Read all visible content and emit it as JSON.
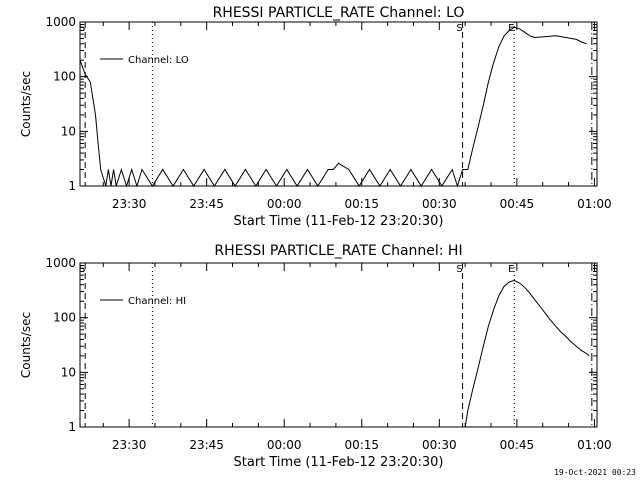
{
  "chart_data": [
    {
      "type": "line",
      "title": "RHESSI PARTICLE_RATE Channel: LO",
      "ylabel": "Counts/sec",
      "xlabel": "Start Time (11-Feb-12 23:20:30)",
      "yscale": "log",
      "ylim": [
        1,
        1000
      ],
      "y_ticks": [
        "1",
        "10",
        "100",
        "1000"
      ],
      "x_ticks": [
        "23:30",
        "23:45",
        "00:00",
        "00:15",
        "00:30",
        "00:45",
        "01:00"
      ],
      "x_range_minutes": [
        0,
        100
      ],
      "legend": {
        "position": "top-left",
        "entries": [
          "Channel: LO"
        ]
      },
      "series": [
        {
          "name": "Channel: LO",
          "x_minutes": [
            0,
            1,
            2,
            3,
            3.5,
            4,
            5,
            5.5,
            6,
            6.5,
            7,
            8,
            9,
            10,
            11,
            12,
            14,
            16,
            18,
            20,
            22,
            24,
            26,
            28,
            30,
            32,
            34,
            36,
            38,
            40,
            42,
            44,
            46,
            48,
            49,
            50,
            52,
            54,
            56,
            58,
            60,
            62,
            64,
            66,
            68,
            70,
            72,
            73,
            74,
            75,
            76,
            77,
            78,
            79,
            80,
            81,
            82,
            83,
            84,
            85,
            86,
            87,
            88,
            90,
            92,
            94,
            96,
            97,
            98
          ],
          "values": [
            200,
            110,
            80,
            20,
            6,
            2,
            1,
            2,
            1,
            2,
            1,
            2,
            1,
            2,
            1,
            2,
            1,
            2,
            1,
            2,
            1,
            2,
            1,
            2,
            1,
            2,
            1,
            2,
            1,
            2,
            1,
            2,
            1,
            2,
            2,
            2.6,
            2,
            1,
            2,
            1,
            2,
            1,
            2,
            1,
            2,
            1,
            2,
            1,
            2,
            2,
            5,
            12,
            30,
            80,
            180,
            350,
            550,
            700,
            800,
            750,
            650,
            560,
            520,
            540,
            560,
            520,
            480,
            430,
            400
          ]
        }
      ],
      "markers": [
        {
          "label": "S",
          "minute": 1,
          "style": "dashed"
        },
        {
          "label": "",
          "minute": 14,
          "style": "dotted"
        },
        {
          "label": "S",
          "minute": 74,
          "style": "dashed"
        },
        {
          "label": "E",
          "minute": 84,
          "style": "dotted"
        },
        {
          "label": "",
          "minute": 99,
          "style": "dashdot"
        }
      ]
    },
    {
      "type": "line",
      "title": "RHESSI PARTICLE_RATE Channel: HI",
      "ylabel": "Counts/sec",
      "xlabel": "Start Time (11-Feb-12 23:20:30)",
      "yscale": "log",
      "ylim": [
        1,
        1000
      ],
      "y_ticks": [
        "1",
        "10",
        "100",
        "1000"
      ],
      "x_ticks": [
        "23:30",
        "23:45",
        "00:00",
        "00:15",
        "00:30",
        "00:45",
        "01:00"
      ],
      "x_range_minutes": [
        0,
        100
      ],
      "legend": {
        "position": "top-left",
        "entries": [
          "Channel: HI"
        ]
      },
      "series": [
        {
          "name": "Channel: HI",
          "x_minutes": [
            74.5,
            75,
            76,
            77,
            78,
            79,
            80,
            81,
            82,
            83,
            84,
            85,
            86,
            87,
            88,
            89,
            90,
            91,
            92,
            93,
            94,
            95,
            96,
            97,
            98,
            98.5
          ],
          "values": [
            1,
            2,
            5,
            12,
            30,
            70,
            140,
            250,
            370,
            450,
            480,
            430,
            360,
            280,
            210,
            160,
            120,
            90,
            70,
            55,
            45,
            36,
            30,
            25,
            22,
            20
          ]
        }
      ],
      "markers": [
        {
          "label": "S",
          "minute": 1,
          "style": "dashed"
        },
        {
          "label": "",
          "minute": 14,
          "style": "dotted"
        },
        {
          "label": "S",
          "minute": 74,
          "style": "dashed"
        },
        {
          "label": "E",
          "minute": 84,
          "style": "dotted"
        },
        {
          "label": "",
          "minute": 99,
          "style": "dashdot"
        }
      ]
    }
  ],
  "footer": {
    "stamp": "19-Oct-2021 00:23"
  }
}
